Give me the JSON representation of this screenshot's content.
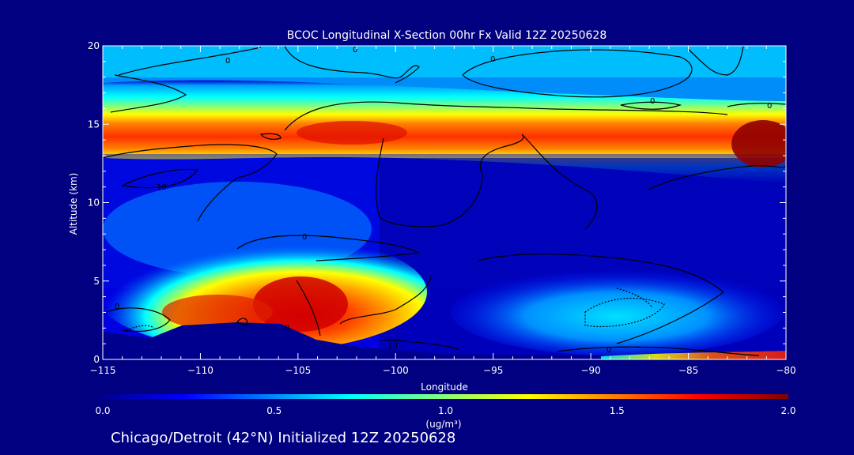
{
  "chart_data": {
    "type": "heatmap",
    "title": "BCOC Longitudinal X-Section 00hr  Fx Valid 12Z 20250628",
    "xlabel": "Longitude",
    "ylabel": "Altitude (km)",
    "xlim": [
      -115,
      -80
    ],
    "ylim": [
      0,
      20
    ],
    "x_ticks": [
      -115,
      -110,
      -105,
      -100,
      -95,
      -90,
      -85,
      -80
    ],
    "y_ticks": [
      0,
      5,
      10,
      15,
      20
    ],
    "x_tick_labels": [
      "−115",
      "−110",
      "−105",
      "−100",
      "−95",
      "−90",
      "−85",
      "−80"
    ],
    "y_tick_labels": [
      "0",
      "5",
      "10",
      "15",
      "20"
    ],
    "colorbar": {
      "min": 0.0,
      "max": 2.0,
      "ticks": [
        0.0,
        0.5,
        1.0,
        1.5,
        2.0
      ],
      "tick_labels": [
        "0.0",
        "0.5",
        "1.0",
        "1.5",
        "2.0"
      ],
      "units_label": "(ug/m³)"
    },
    "colormap": [
      "#00008f",
      "#0000ff",
      "#00ffff",
      "#ffff00",
      "#ff0000",
      "#800000"
    ],
    "grid": false,
    "contour_labels": [
      "0",
      "0",
      "0",
      "0",
      "0",
      "0",
      "0",
      "0",
      "0",
      "10",
      "10"
    ],
    "features": [
      {
        "name": "upper layer",
        "lon_range": [
          -115,
          -80
        ],
        "alt_range": [
          12.5,
          16.5
        ],
        "peak_value": 2.0
      },
      {
        "name": "lower western plume",
        "lon_range": [
          -112,
          -100
        ],
        "alt_range": [
          1.5,
          5.5
        ],
        "peak_value": 2.0
      },
      {
        "name": "near-surface eastern layer",
        "lon_range": [
          -90,
          -80
        ],
        "alt_range": [
          0,
          0.5
        ],
        "peak_value": 1.5
      }
    ]
  },
  "footer": {
    "text": "Chicago/Detroit (42°N) Initialized 12Z 20250628"
  }
}
